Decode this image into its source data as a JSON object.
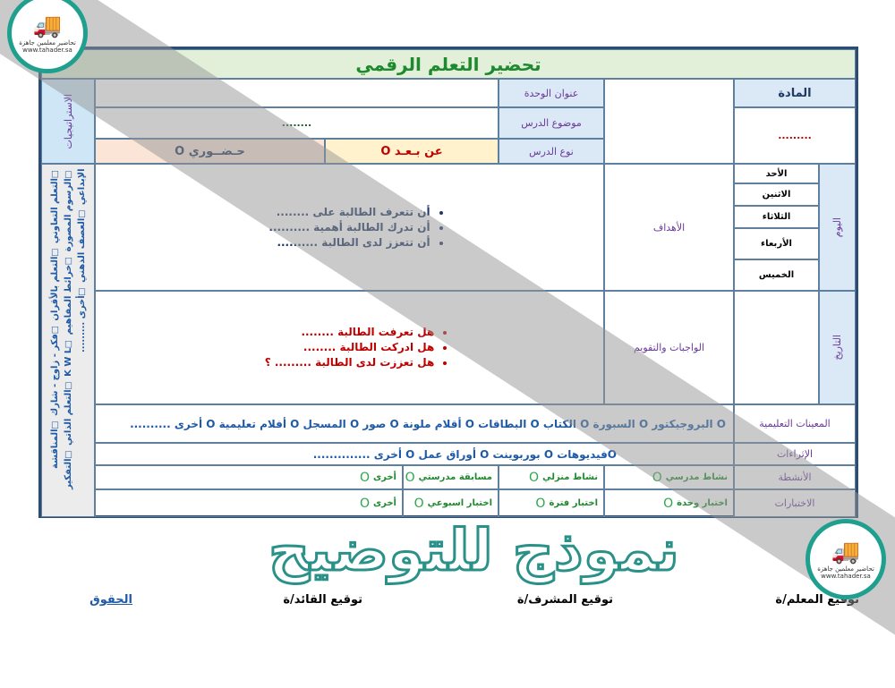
{
  "title": "تحضير التعلم الرقمي",
  "strategies_label": "الاستراتيجيات",
  "strategies": "☐التعلم التعاوني ☐التعلم بالأقران ☐فكر - زاوج - شارك ☐المناقشة ☐الرسوم المصورة ☐خرائط المفاهيم ☐K W L ☐التعلم الذاتي ☐التفكير الإبداعي ☐العصف الذهني ☐أخرى .........",
  "subject": {
    "label": "المادة",
    "value": "........."
  },
  "unit_title": "عنوان الوحدة",
  "lesson_topic": {
    "label": "موضوع الدرس",
    "value": "........"
  },
  "lesson_type": {
    "label": "نوع الدرس",
    "remote": "عن بـعـد O",
    "inperson": "حـضــوري O"
  },
  "day_label": "اليوم",
  "days": [
    "الأحد",
    "الاثنين",
    "الثلاثاء",
    "الأربعاء",
    "الخميس"
  ],
  "date_label": "التاريخ",
  "goals": {
    "label": "الأهداف",
    "items": [
      "أن تتعرف الطالبة على ........",
      "أن تدرك الطالبة أهمية ..........",
      "أن تتعزز لدى الطالبة .........."
    ]
  },
  "homework": {
    "label": "الواجبات والتقويم",
    "items": [
      "هل تعرفت الطالبة ........",
      "هل ادركت الطالبة ........",
      "هل تعززت لدى الطالبة ......... ؟"
    ]
  },
  "aids": {
    "label": "المعينات التعليمية",
    "text": "O البروجيكتور  O السبورة  O الكتاب  O البطاقات  O أقلام ملونة  O صور  O المسجل  O أفلام تعليمية  O أخرى .........."
  },
  "enrichment": {
    "label": "الإثراءات",
    "text": "Oفيديوهات   O  بوربوينت   O  أوراق عمل  O  أخرى .............."
  },
  "activities": {
    "label": "الأنشطة",
    "items": [
      "نشاط مدرسي",
      "نشاط منزلي",
      "مسابقة مدرستي",
      "أخرى"
    ]
  },
  "tests": {
    "label": "الاختبارات",
    "items": [
      "اختبار وحدة",
      "اختبار فترة",
      "اختبار اسبوعي",
      "أخرى"
    ]
  },
  "signatures": {
    "teacher": "توقيع المعلم/ة",
    "supervisor": "توقيع المشرف/ة",
    "leader": "توقيع القائد/ة",
    "rights": "الحقوق"
  },
  "watermark": "نموذج للتوضيح",
  "logo": {
    "name": "تحاضير معلمين جاهزة",
    "url": "www.tahader.sa"
  },
  "colors": {
    "frame": "#2c4d73",
    "title": "#1e8a2e",
    "options": "#1f5aa6",
    "labels": "#6a3a9a",
    "red": "#c00000",
    "teal": "#1fa08e"
  }
}
